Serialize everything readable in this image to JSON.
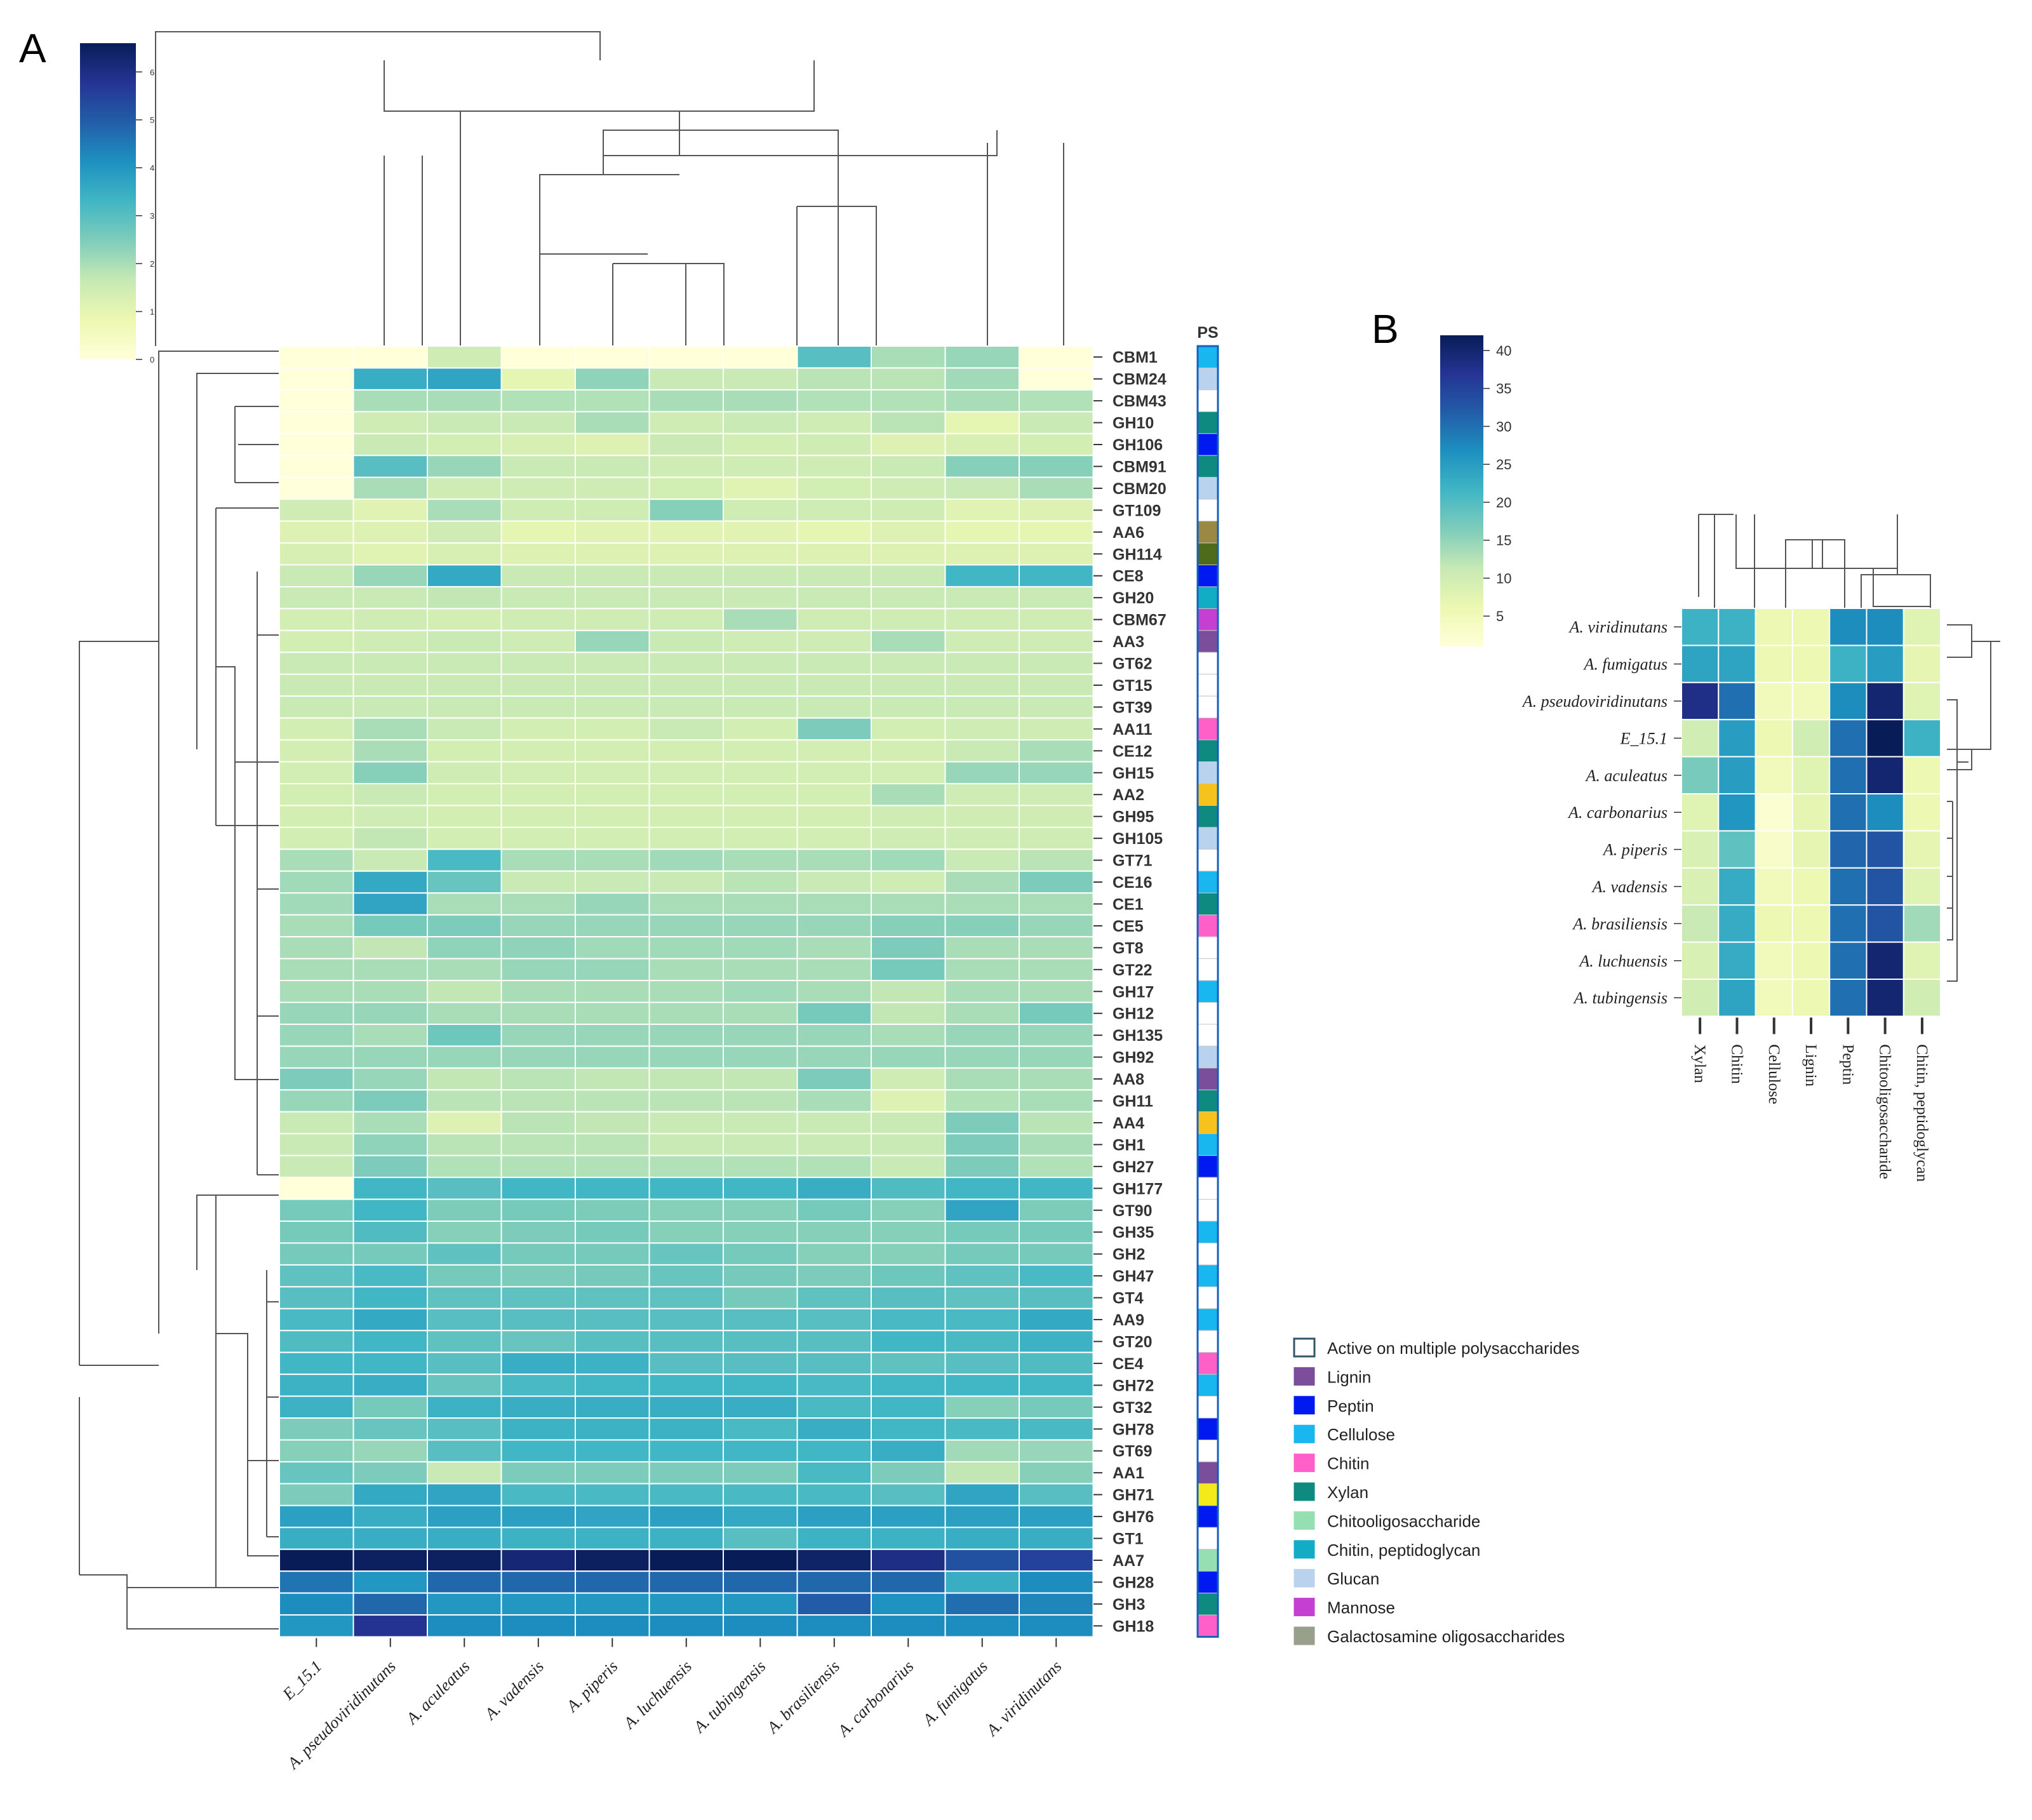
{
  "panels": {
    "a": "A",
    "b": "B"
  },
  "ps_header": "PS",
  "colors": {
    "scale": [
      "#ffffd9",
      "#edf8b1",
      "#c7e9b4",
      "#7fcdbb",
      "#41b6c4",
      "#1d91c0",
      "#225ea8",
      "#253494",
      "#081d58"
    ],
    "ps": {
      "None": "#ffffff",
      "Active on multiple polysaccharides": "#ffffff",
      "Lignin": "#7a4e9a",
      "Peptin": "#0019f0",
      "Cellulose": "#19b7ef",
      "Chitin": "#ff5fc8",
      "Xylan": "#0e8a80",
      "Chitooligosaccharide": "#96dfb3",
      "Chitin, peptidoglycan": "#12adc4",
      "Glucan": "#b9d2ee",
      "Mannose": "#c43fd2",
      "Galactosamine oligosaccharides": "#989f8a",
      "Olive": "#9b8843",
      "DarkGreen": "#4d6b1a",
      "Gold": "#f6c21b",
      "Yellow": "#f4ea1a"
    }
  },
  "chart_data": [
    {
      "type": "heatmap",
      "title": "",
      "colorbar": {
        "min": 0,
        "max": 6.6,
        "ticks": [
          0,
          1,
          2,
          3,
          4,
          5,
          6
        ]
      },
      "columns": [
        "E_15.1",
        "A. pseudoviridinutans",
        "A. aculeatus",
        "A. vadensis",
        "A. piperis",
        "A. luchuensis",
        "A. tubingensis",
        "A. brasiliensis",
        "A. carbonarius",
        "A. fumigatus",
        "A. viridinutans"
      ],
      "rows": [
        "CBM1",
        "CBM24",
        "CBM43",
        "GH10",
        "GH106",
        "CBM91",
        "CBM20",
        "GT109",
        "AA6",
        "GH114",
        "CE8",
        "GH20",
        "CBM67",
        "AA3",
        "GT62",
        "GT15",
        "GT39",
        "AA11",
        "CE12",
        "GH15",
        "AA2",
        "GH95",
        "GH105",
        "GT71",
        "CE16",
        "CE1",
        "CE5",
        "GT8",
        "GT22",
        "GH17",
        "GH12",
        "GH135",
        "GH92",
        "AA8",
        "GH11",
        "AA4",
        "GH1",
        "GH27",
        "GH177",
        "GT90",
        "GH35",
        "GH2",
        "GH47",
        "GT4",
        "AA9",
        "GT20",
        "CE4",
        "GH72",
        "GT32",
        "GH78",
        "GT69",
        "AA1",
        "GH71",
        "GH76",
        "GT1",
        "AA7",
        "GH28",
        "GH3",
        "GH18"
      ],
      "values": [
        [
          0,
          0,
          1.5,
          0,
          0,
          0,
          0,
          3,
          2,
          2.2,
          0
        ],
        [
          0,
          3.5,
          3.7,
          1,
          2.3,
          1.6,
          1.6,
          1.8,
          1.8,
          2.1,
          0
        ],
        [
          0,
          2,
          2,
          1.9,
          1.9,
          2,
          2,
          1.9,
          1.9,
          2,
          1.9
        ],
        [
          0,
          1.5,
          1.6,
          1.6,
          2,
          1.5,
          1.6,
          1.5,
          1.8,
          1,
          1.6
        ],
        [
          0,
          1.6,
          1.4,
          1.3,
          1.2,
          1.6,
          1.4,
          1.5,
          1.2,
          1.3,
          1.4
        ],
        [
          0,
          3,
          2.2,
          1.6,
          1.6,
          1.5,
          1.5,
          1.5,
          1.6,
          2.4,
          2.4
        ],
        [
          0,
          2,
          1.5,
          1.5,
          1.5,
          1.4,
          1.1,
          1.4,
          1.5,
          1.6,
          2
        ],
        [
          1.5,
          1.1,
          2,
          1.5,
          1.5,
          2.4,
          1.5,
          1.5,
          1.5,
          1.1,
          1.2
        ],
        [
          1.2,
          1.2,
          1.5,
          1,
          1.1,
          1.1,
          1.1,
          1,
          1.2,
          1,
          1
        ],
        [
          1.3,
          1.1,
          1.3,
          1.2,
          1.2,
          1.2,
          1.2,
          1.2,
          1.2,
          1.2,
          1.2
        ],
        [
          1.6,
          2.2,
          3.6,
          1.6,
          1.6,
          1.6,
          1.6,
          1.6,
          1.6,
          3.3,
          3.3
        ],
        [
          1.6,
          1.6,
          1.7,
          1.6,
          1.6,
          1.6,
          1.6,
          1.6,
          1.6,
          1.6,
          1.6
        ],
        [
          1.4,
          1.5,
          1.4,
          1.5,
          1.5,
          1.5,
          2,
          1.5,
          1.5,
          1.5,
          1.5
        ],
        [
          1.4,
          1.5,
          1.6,
          1.5,
          2.2,
          1.6,
          1.5,
          1.5,
          2,
          1.5,
          1.5
        ],
        [
          1.6,
          1.6,
          1.6,
          1.6,
          1.6,
          1.6,
          1.6,
          1.6,
          1.6,
          1.6,
          1.6
        ],
        [
          1.6,
          1.6,
          1.6,
          1.6,
          1.6,
          1.6,
          1.6,
          1.6,
          1.6,
          1.6,
          1.6
        ],
        [
          1.6,
          1.6,
          1.6,
          1.6,
          1.6,
          1.6,
          1.6,
          1.6,
          1.6,
          1.6,
          1.6
        ],
        [
          1.4,
          2,
          1.6,
          1.4,
          1.4,
          1.6,
          1.4,
          2.5,
          1.4,
          1.5,
          1.5
        ],
        [
          1.4,
          2,
          1.4,
          1.4,
          1.4,
          1.4,
          1.4,
          1.4,
          1.4,
          1.6,
          2
        ],
        [
          1.4,
          2.4,
          1.5,
          1.4,
          1.4,
          1.4,
          1.4,
          1.4,
          1.4,
          2.2,
          2.2
        ],
        [
          1.4,
          1.6,
          1.4,
          1.4,
          1.4,
          1.4,
          1.4,
          1.4,
          2,
          1.5,
          1.5
        ],
        [
          1.4,
          1.5,
          1.4,
          1.4,
          1.4,
          1.4,
          1.4,
          1.4,
          1.5,
          1.5,
          1.5
        ],
        [
          1.4,
          1.7,
          1.4,
          1.4,
          1.4,
          1.4,
          1.4,
          1.4,
          1.5,
          1.5,
          1.5
        ],
        [
          2,
          1.6,
          3.2,
          2,
          2,
          2.1,
          2,
          2,
          2.1,
          1.6,
          1.8
        ],
        [
          2.1,
          3.6,
          2.8,
          1.6,
          1.6,
          1.6,
          1.8,
          1.6,
          1.5,
          2,
          2.5
        ],
        [
          2.1,
          3.7,
          2,
          2,
          2.2,
          2,
          2,
          2,
          2,
          2,
          2
        ],
        [
          2,
          2.6,
          2.5,
          2.2,
          2.2,
          2.2,
          2.2,
          2.2,
          2.4,
          2.4,
          2.2
        ],
        [
          2,
          1.7,
          2.3,
          2.3,
          2.1,
          2.1,
          2.1,
          2,
          2.5,
          2,
          2
        ],
        [
          2,
          2,
          2,
          2.2,
          2.2,
          2,
          2,
          2,
          2.6,
          2,
          2
        ],
        [
          2,
          2,
          1.7,
          2,
          2,
          2,
          2.1,
          2,
          1.7,
          2,
          2
        ],
        [
          2.2,
          2.2,
          2,
          2,
          2,
          2,
          2,
          2.6,
          1.7,
          2,
          2.6
        ],
        [
          2.2,
          2,
          2.7,
          2.2,
          2.2,
          2.2,
          2.2,
          2.2,
          2,
          2.2,
          2.2
        ],
        [
          2.2,
          2.2,
          2.2,
          2.2,
          2.2,
          2.2,
          2.2,
          2.2,
          2.2,
          2.2,
          2.2
        ],
        [
          2.5,
          2.2,
          1.7,
          1.8,
          1.7,
          1.7,
          1.7,
          2.5,
          1.5,
          2,
          2
        ],
        [
          2.2,
          2.5,
          1.8,
          1.8,
          1.8,
          1.8,
          1.8,
          2,
          1.2,
          1.9,
          2
        ],
        [
          1.6,
          2,
          1.2,
          1.8,
          1.7,
          1.6,
          1.6,
          1.6,
          1.6,
          2.5,
          1.8
        ],
        [
          1.6,
          2.3,
          1.8,
          1.8,
          1.8,
          1.6,
          1.6,
          1.6,
          1.6,
          2.5,
          2
        ],
        [
          1.6,
          2.5,
          1.9,
          1.9,
          1.9,
          1.9,
          1.9,
          1.9,
          1.6,
          2.5,
          1.9
        ],
        [
          0,
          3.3,
          3,
          3.3,
          3.3,
          3.3,
          3.3,
          3.5,
          3.1,
          3.3,
          3.3
        ],
        [
          2.6,
          3.3,
          2.5,
          2.6,
          2.5,
          2.4,
          2.4,
          2.6,
          2.4,
          3.7,
          2.5
        ],
        [
          2.6,
          3.1,
          2.4,
          2.5,
          2.6,
          2.4,
          2.4,
          2.4,
          2.4,
          2.6,
          2.6
        ],
        [
          2.6,
          2.6,
          2.9,
          2.6,
          2.6,
          2.8,
          2.6,
          2.4,
          2.4,
          2.6,
          2.6
        ],
        [
          2.9,
          3.2,
          2.6,
          2.5,
          2.6,
          2.8,
          2.6,
          2.5,
          2.7,
          2.9,
          3.2
        ],
        [
          3,
          3.3,
          2.9,
          2.9,
          2.9,
          2.9,
          2.6,
          2.9,
          3,
          2.9,
          3
        ],
        [
          3.2,
          3.6,
          3,
          3,
          3,
          3,
          3,
          3,
          3.2,
          3.2,
          3.6
        ],
        [
          3.1,
          3.3,
          2.9,
          2.8,
          3,
          3,
          3,
          3,
          3.3,
          3.2,
          3.4
        ],
        [
          3.3,
          3.3,
          3,
          3.5,
          3.4,
          3,
          3,
          3,
          2.9,
          3,
          3.1
        ],
        [
          3.4,
          3.5,
          2.8,
          3.2,
          3.3,
          3.3,
          3.3,
          3.2,
          3.3,
          3.3,
          3.3
        ],
        [
          3.4,
          2.6,
          3.4,
          3.5,
          3.5,
          3.5,
          3.5,
          3.2,
          3.3,
          2.4,
          2.6
        ],
        [
          2.5,
          2.8,
          3,
          3.4,
          3.4,
          3.4,
          3.2,
          3.5,
          3.3,
          3.2,
          3.2
        ],
        [
          2.4,
          2.2,
          3,
          3.3,
          3.3,
          3.3,
          3.3,
          3.3,
          3.5,
          2.1,
          2.2
        ],
        [
          2.8,
          2.5,
          1.6,
          2.5,
          2.5,
          2.5,
          2.5,
          3.2,
          2.5,
          1.7,
          2.4
        ],
        [
          2.5,
          3.6,
          3.7,
          3.2,
          3.2,
          3.2,
          3.2,
          3.2,
          3,
          3.7,
          3
        ],
        [
          3.8,
          3.5,
          3.8,
          3.8,
          3.7,
          3.8,
          3.6,
          3.8,
          3.8,
          3.8,
          3.8
        ],
        [
          3.5,
          3.5,
          3.5,
          3.4,
          3.4,
          3.4,
          3,
          3.4,
          3.4,
          3.5,
          3.5
        ],
        [
          6.6,
          6.5,
          6.5,
          6.2,
          6.5,
          6.6,
          6.6,
          6.4,
          6,
          5.2,
          5.5
        ],
        [
          4.6,
          4,
          4.8,
          4.8,
          4.8,
          4.8,
          4.8,
          4.8,
          4.8,
          3.5,
          4.2
        ],
        [
          4.2,
          4.8,
          4,
          4,
          4,
          4,
          4,
          5,
          4.1,
          4.7,
          4.3
        ],
        [
          4,
          5.8,
          4.2,
          4.2,
          4.2,
          4.2,
          4.2,
          4.2,
          4.2,
          4.2,
          4.2
        ]
      ],
      "row_ps": [
        "Cellulose",
        "Glucan",
        "None",
        "Xylan",
        "Peptin",
        "Xylan",
        "Glucan",
        "None",
        "Olive",
        "DarkGreen",
        "Peptin",
        "Chitin, peptidoglycan",
        "Mannose",
        "Lignin",
        "None",
        "None",
        "None",
        "Chitin",
        "Xylan",
        "Glucan",
        "Gold",
        "Xylan",
        "Glucan",
        "None",
        "Cellulose",
        "Xylan",
        "Chitin",
        "None",
        "None",
        "Cellulose",
        "None",
        "None",
        "Glucan",
        "Lignin",
        "Xylan",
        "Gold",
        "Cellulose",
        "Peptin",
        "None",
        "None",
        "Cellulose",
        "None",
        "Cellulose",
        "None",
        "Cellulose",
        "None",
        "Chitin",
        "Cellulose",
        "None",
        "Peptin",
        "None",
        "Lignin",
        "Yellow",
        "Peptin",
        "None",
        "Chitooligosaccharide",
        "Peptin",
        "Xylan",
        "Chitin"
      ]
    },
    {
      "type": "heatmap",
      "title": "",
      "colorbar": {
        "min": 1,
        "max": 42,
        "ticks": [
          5,
          10,
          15,
          20,
          25,
          30,
          35,
          40
        ]
      },
      "rows": [
        "A. viridinutans",
        "A. fumigatus",
        "A. pseudoviridinutans",
        "E_15.1",
        "A. aculeatus",
        "A. carbonarius",
        "A. piperis",
        "A. vadensis",
        "A. brasiliensis",
        "A. luchuensis",
        "A. tubingensis"
      ],
      "columns": [
        "Xylan",
        "Chitin",
        "Cellulose",
        "Lignin",
        "Peptin",
        "Chitooligosaccharide",
        "Chitin, peptidoglycan"
      ],
      "values": [
        [
          22,
          22,
          6,
          6,
          27,
          27,
          8
        ],
        [
          24,
          24,
          6,
          6,
          22,
          25,
          7
        ],
        [
          38,
          30,
          5,
          5,
          27,
          40,
          8
        ],
        [
          10,
          25,
          6,
          10,
          30,
          42,
          22
        ],
        [
          17,
          25,
          5,
          8,
          30,
          40,
          6
        ],
        [
          8,
          26,
          2,
          7,
          30,
          27,
          6
        ],
        [
          9,
          19,
          3,
          7,
          31,
          33,
          7
        ],
        [
          9,
          23,
          5,
          6,
          30,
          33,
          8
        ],
        [
          11,
          23,
          6,
          6,
          30,
          33,
          14
        ],
        [
          9,
          23,
          5,
          6,
          30,
          40,
          8
        ],
        [
          10,
          24,
          5,
          6,
          30,
          40,
          10
        ]
      ]
    }
  ],
  "legend": {
    "items": [
      {
        "label": "Active on multiple polysaccharides",
        "key": "Active on multiple polysaccharides"
      },
      {
        "label": "Lignin",
        "key": "Lignin"
      },
      {
        "label": "Peptin",
        "key": "Peptin"
      },
      {
        "label": "Cellulose",
        "key": "Cellulose"
      },
      {
        "label": "Chitin",
        "key": "Chitin"
      },
      {
        "label": "Xylan",
        "key": "Xylan"
      },
      {
        "label": "Chitooligosaccharide",
        "key": "Chitooligosaccharide"
      },
      {
        "label": "Chitin, peptidoglycan",
        "key": "Chitin, peptidoglycan"
      },
      {
        "label": "Glucan",
        "key": "Glucan"
      },
      {
        "label": "Mannose",
        "key": "Mannose"
      },
      {
        "label": "Galactosamine oligosaccharides",
        "key": "Galactosamine oligosaccharides"
      }
    ]
  }
}
